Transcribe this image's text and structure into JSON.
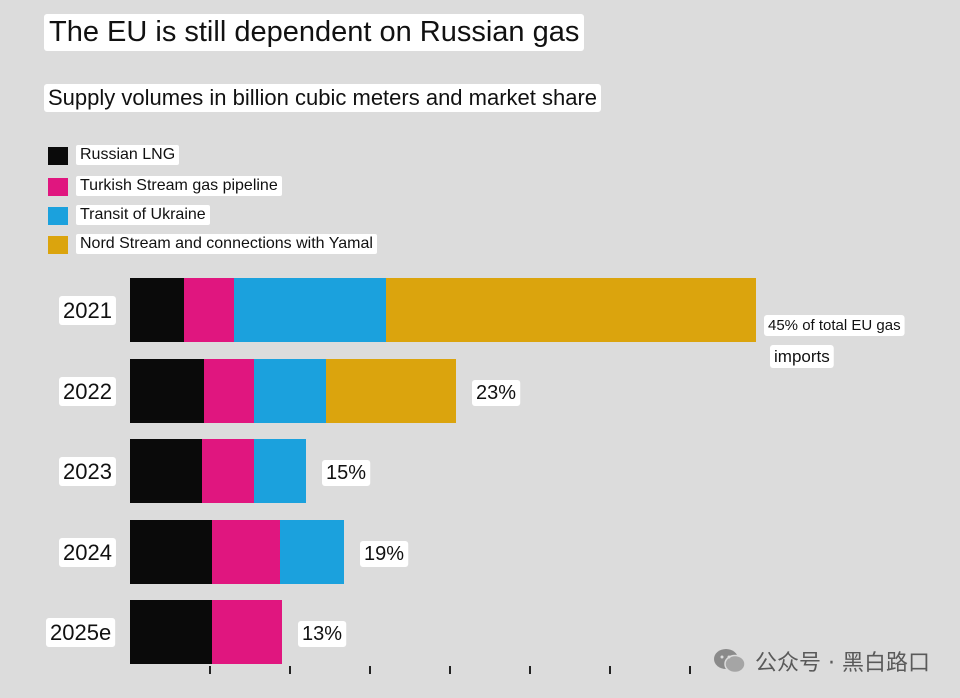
{
  "header": {
    "title": "The EU is still dependent on Russian gas",
    "subtitle": "Supply volumes in billion cubic meters and market share"
  },
  "legend": [
    {
      "label": "Russian LNG",
      "color": "#0a0a0a"
    },
    {
      "label": "Turkish Stream gas pipeline",
      "color": "#e0167f"
    },
    {
      "label": "Transit of Ukraine",
      "color": "#1ba1dd"
    },
    {
      "label": "Nord Stream and connections with Yamal",
      "color": "#dba40d"
    }
  ],
  "chart_data": {
    "type": "bar",
    "orientation": "horizontal",
    "stacked": true,
    "title": "The EU is still dependent on Russian gas",
    "subtitle": "Supply volumes in billion cubic meters and market share",
    "categories": [
      "2021",
      "2022",
      "2023",
      "2024",
      "2025e"
    ],
    "series": [
      {
        "name": "Russian LNG",
        "color": "#0a0a0a",
        "values": [
          13.5,
          18.5,
          18.0,
          20.5,
          20.5
        ]
      },
      {
        "name": "Turkish Stream gas pipeline",
        "color": "#e0167f",
        "values": [
          12.5,
          12.5,
          13.0,
          17.0,
          17.5
        ]
      },
      {
        "name": "Transit of Ukraine",
        "color": "#1ba1dd",
        "values": [
          38.0,
          18.0,
          13.0,
          16.0,
          0
        ]
      },
      {
        "name": "Nord Stream and connections with Yamal",
        "color": "#dba40d",
        "values": [
          92.5,
          32.5,
          0,
          0,
          0
        ]
      }
    ],
    "bar_labels": [
      "45% of total EU gas imports",
      "23%",
      "15%",
      "19%",
      "13%"
    ],
    "xlim": [
      0,
      160
    ],
    "ticks": [
      20,
      40,
      60,
      80,
      100,
      120,
      140
    ],
    "grid": false,
    "legend_position": "top-left"
  },
  "watermark": "公众号 · 黑白路口"
}
